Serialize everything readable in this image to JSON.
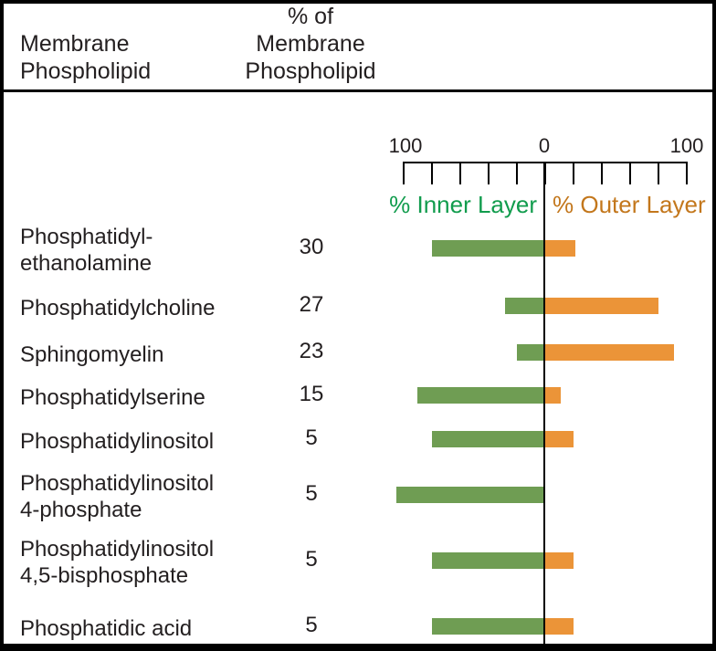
{
  "header": {
    "col1": [
      "Membrane",
      "Phospholipid"
    ],
    "col2": [
      "% of",
      "Membrane",
      "Phospholipid"
    ]
  },
  "colors": {
    "inner_bar": "#6f9d53",
    "outer_bar": "#eb9438",
    "inner_label": "#119c4d",
    "outer_label": "#c3771c",
    "text": "#231f20"
  },
  "chart_data": {
    "type": "bar",
    "orientation": "diverging-horizontal",
    "axis": {
      "tick_labels": [
        "100",
        "0",
        "100"
      ],
      "left_range": [
        100,
        0
      ],
      "right_range": [
        0,
        100
      ],
      "tick_step": 20,
      "grid": false
    },
    "legend": {
      "inner": "% Inner Layer",
      "outer": "% Outer Layer",
      "position": "top"
    },
    "rows": [
      {
        "label_lines": [
          "Phosphatidyl-",
          "ethanolamine"
        ],
        "pct_of_membrane": 30,
        "inner_pct": 79,
        "outer_pct": 21
      },
      {
        "label_lines": [
          "Phosphatidylcholine"
        ],
        "pct_of_membrane": 27,
        "inner_pct": 27,
        "outer_pct": 80
      },
      {
        "label_lines": [
          "Sphingomyelin"
        ],
        "pct_of_membrane": 23,
        "inner_pct": 19,
        "outer_pct": 91
      },
      {
        "label_lines": [
          "Phosphatidylserine"
        ],
        "pct_of_membrane": 15,
        "inner_pct": 89,
        "outer_pct": 11
      },
      {
        "label_lines": [
          "Phosphatidylinositol"
        ],
        "pct_of_membrane": 5,
        "inner_pct": 79,
        "outer_pct": 20
      },
      {
        "label_lines": [
          "Phosphatidylinositol",
          "4-phosphate"
        ],
        "pct_of_membrane": 5,
        "inner_pct": 104,
        "outer_pct": 0
      },
      {
        "label_lines": [
          "Phosphatidylinositol",
          "4,5-bisphosphate"
        ],
        "pct_of_membrane": 5,
        "inner_pct": 79,
        "outer_pct": 20
      },
      {
        "label_lines": [
          "Phosphatidic acid"
        ],
        "pct_of_membrane": 5,
        "inner_pct": 79,
        "outer_pct": 20
      }
    ]
  }
}
